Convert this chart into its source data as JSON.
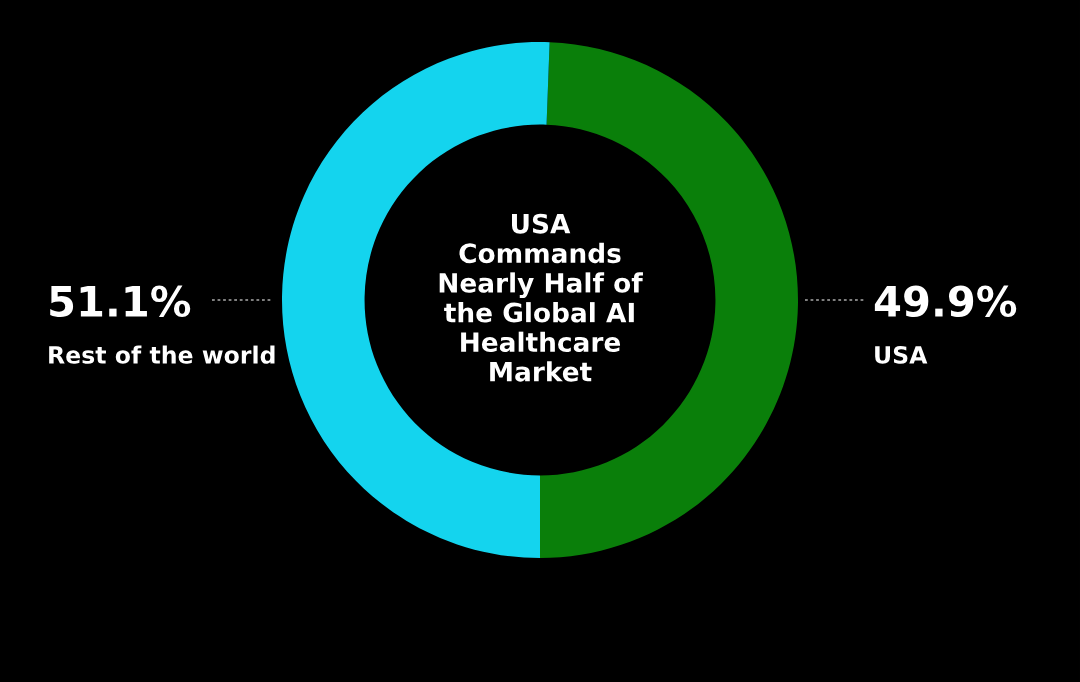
{
  "chart_data": {
    "type": "donut",
    "title": "USA\nCommands\nNearly Half of\nthe Global AI\nHealthcare\nMarket",
    "categories": [
      "USA",
      "Rest of the world"
    ],
    "values": [
      49.9,
      51.1
    ],
    "value_labels": [
      "49.9%",
      "51.1%"
    ],
    "colors": [
      "#0a7f0a",
      "#14d4ee"
    ],
    "legend": false
  }
}
